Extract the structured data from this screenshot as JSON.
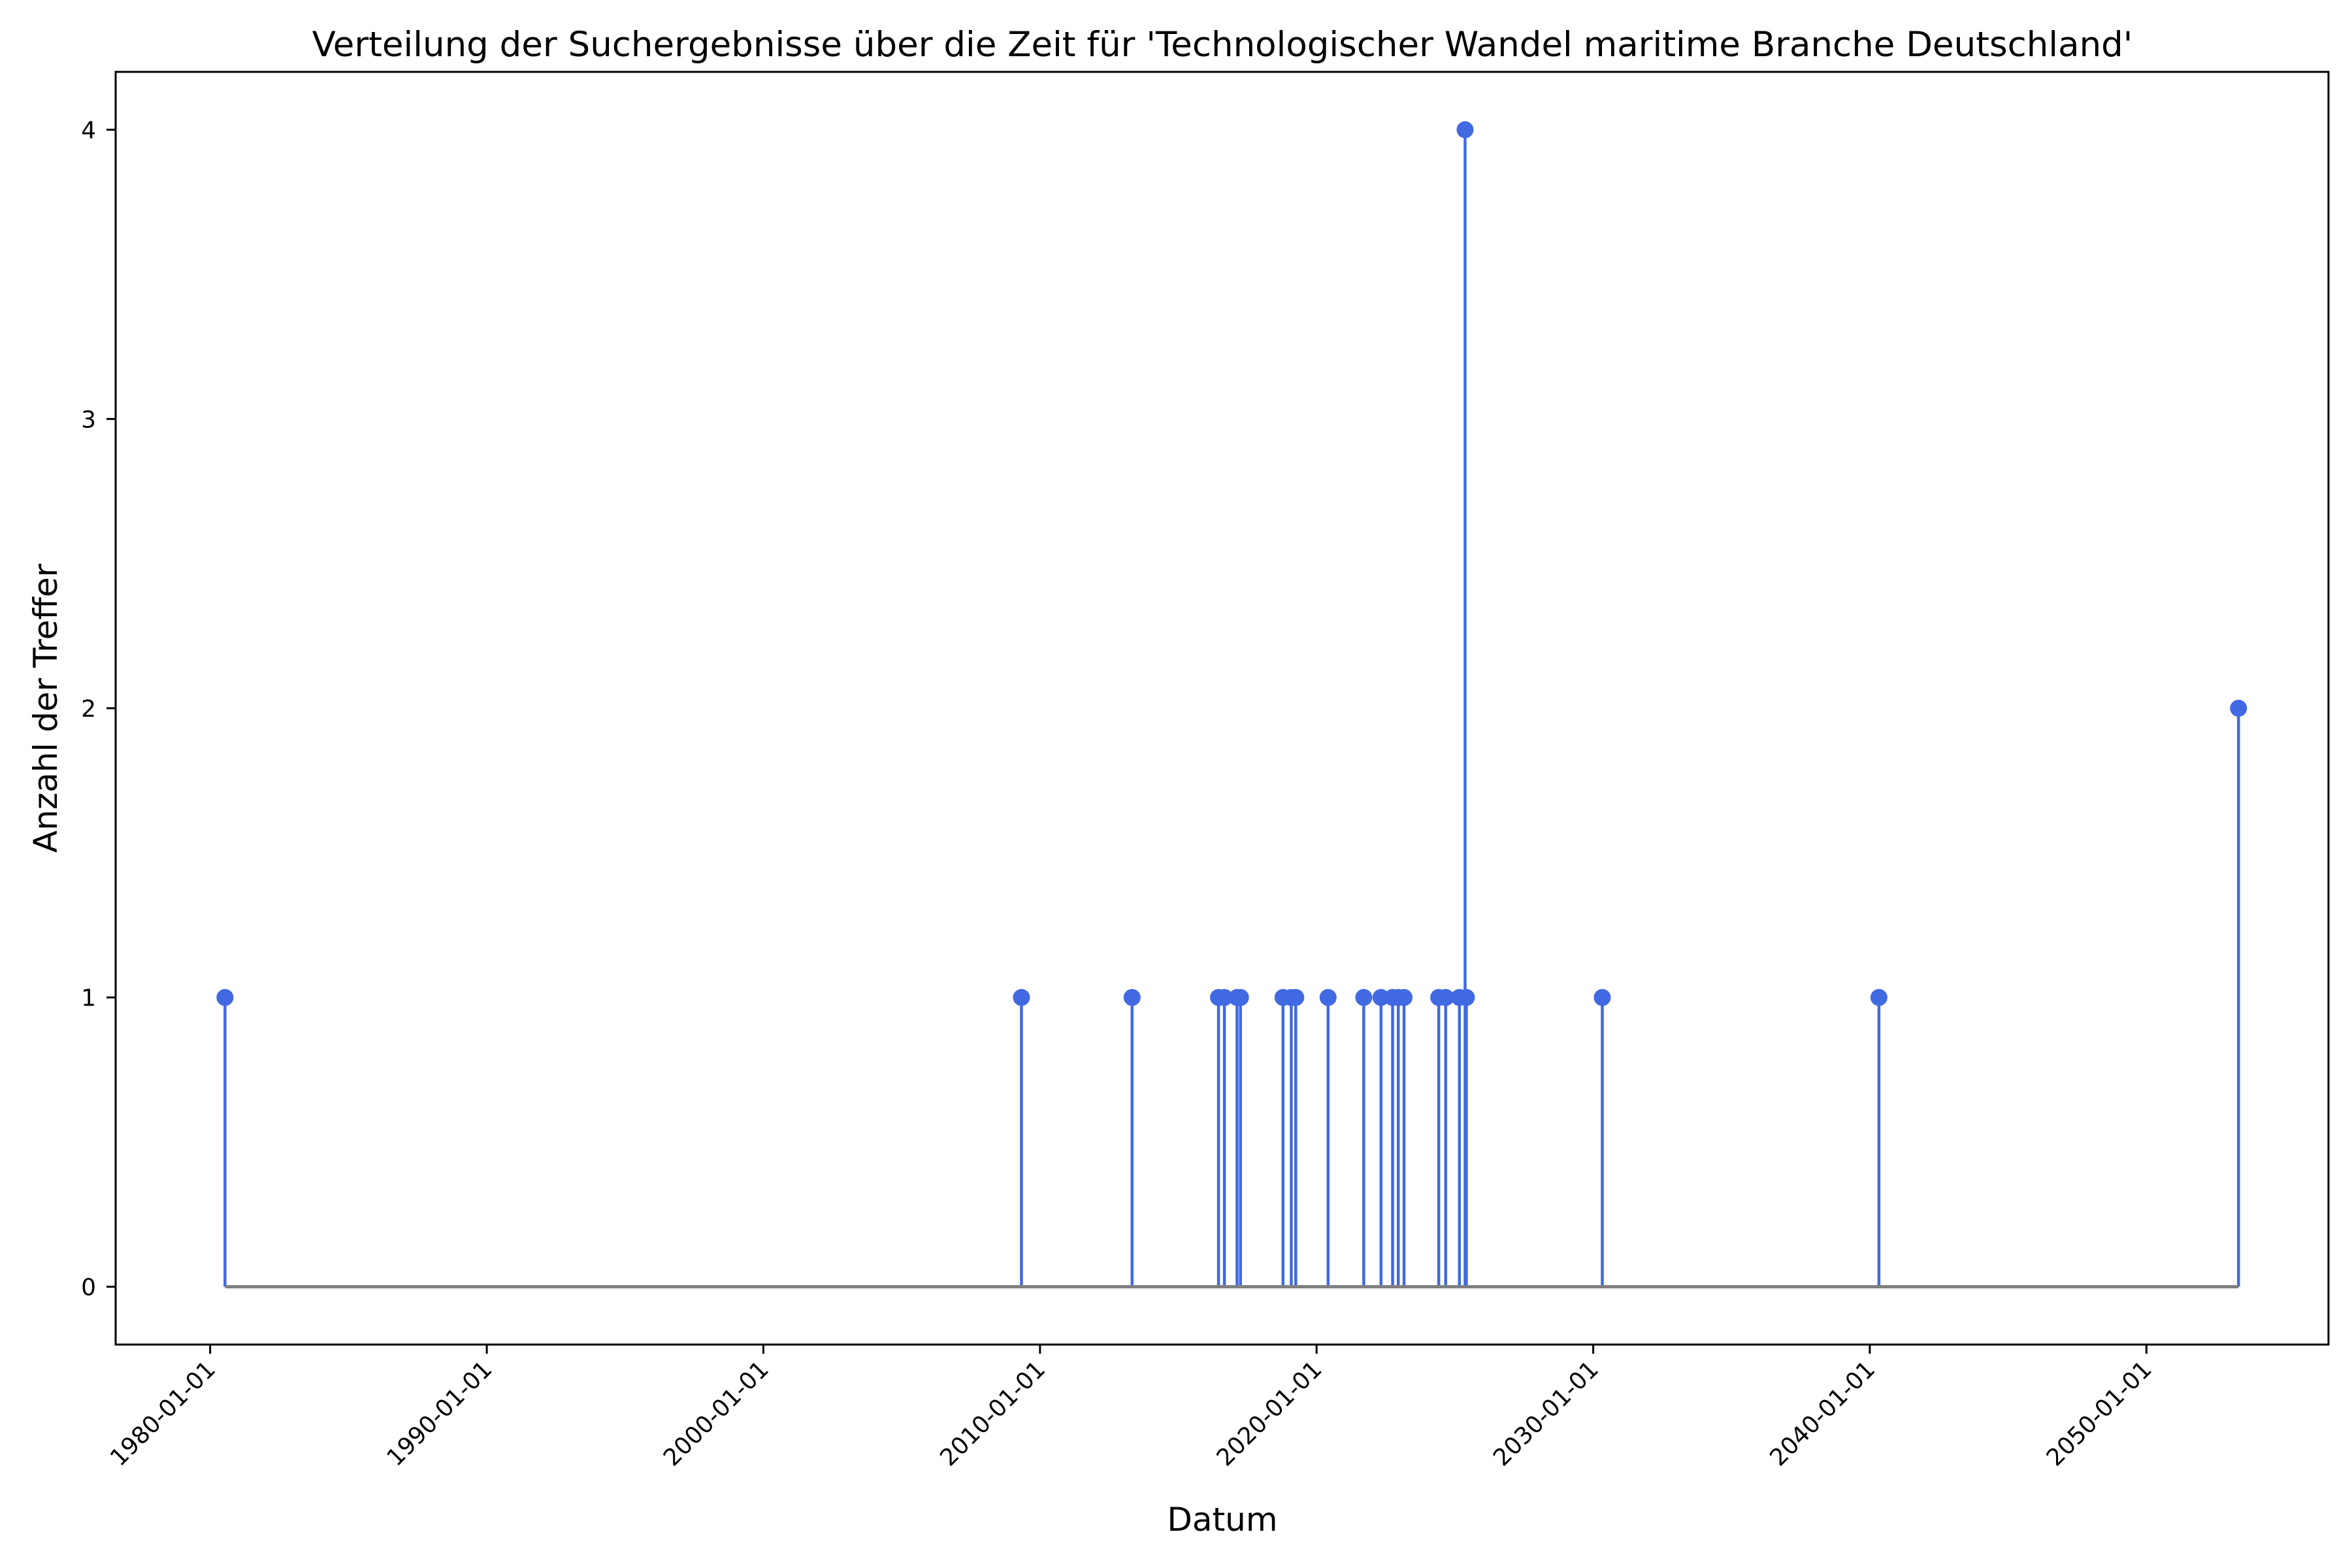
{
  "chart_data": {
    "type": "stem",
    "title": "Verteilung der Suchergebnisse über die Zeit für 'Technologischer Wandel maritime Branche Deutschland'",
    "xlabel": "Datum",
    "ylabel": "Anzahl der Treffer",
    "x_axis_kind": "date",
    "xlim": [
      "1976-08-01",
      "2056-08-01"
    ],
    "ylim": [
      -0.2,
      4.2
    ],
    "x_ticks": [
      "1980-01-01",
      "1990-01-01",
      "2000-01-01",
      "2010-01-01",
      "2020-01-01",
      "2030-01-01",
      "2040-01-01",
      "2050-01-01"
    ],
    "y_ticks": [
      0,
      1,
      2,
      3,
      4
    ],
    "baseline": 0,
    "grid": false,
    "colors": {
      "stem": "#4169e1",
      "marker": "#4169e1",
      "baseline": "#808080"
    },
    "points": [
      {
        "x": "1980-07-15",
        "y": 1
      },
      {
        "x": "2009-05-01",
        "y": 1
      },
      {
        "x": "2013-05-01",
        "y": 1
      },
      {
        "x": "2016-06-15",
        "y": 1
      },
      {
        "x": "2016-09-01",
        "y": 1
      },
      {
        "x": "2017-02-15",
        "y": 1
      },
      {
        "x": "2017-04-01",
        "y": 1
      },
      {
        "x": "2018-10-15",
        "y": 1
      },
      {
        "x": "2019-02-01",
        "y": 1
      },
      {
        "x": "2019-04-01",
        "y": 1
      },
      {
        "x": "2020-06-01",
        "y": 1
      },
      {
        "x": "2021-09-15",
        "y": 1
      },
      {
        "x": "2022-05-01",
        "y": 1
      },
      {
        "x": "2022-10-01",
        "y": 1
      },
      {
        "x": "2022-12-15",
        "y": 1
      },
      {
        "x": "2023-03-01",
        "y": 1
      },
      {
        "x": "2024-06-01",
        "y": 1
      },
      {
        "x": "2024-09-01",
        "y": 1
      },
      {
        "x": "2025-03-01",
        "y": 1
      },
      {
        "x": "2025-05-15",
        "y": 4
      },
      {
        "x": "2025-06-01",
        "y": 1
      },
      {
        "x": "2030-05-01",
        "y": 1
      },
      {
        "x": "2040-05-01",
        "y": 1
      },
      {
        "x": "2053-05-01",
        "y": 2
      }
    ]
  }
}
